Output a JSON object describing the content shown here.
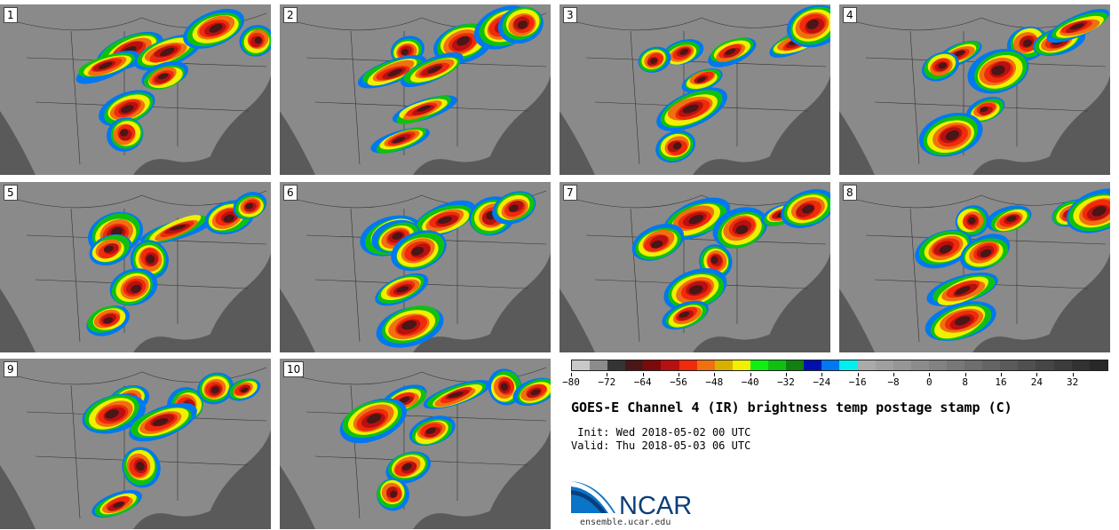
{
  "panels": [
    {
      "label": "1"
    },
    {
      "label": "2"
    },
    {
      "label": "3"
    },
    {
      "label": "4"
    },
    {
      "label": "5"
    },
    {
      "label": "6"
    },
    {
      "label": "7"
    },
    {
      "label": "8"
    },
    {
      "label": "9"
    },
    {
      "label": "10"
    }
  ],
  "colorbar": {
    "colors": [
      "#c8c8c8",
      "#8c8c8c",
      "#343434",
      "#4a1616",
      "#7c0a0a",
      "#b81010",
      "#f02a0a",
      "#f07010",
      "#d8b000",
      "#f0f000",
      "#10f010",
      "#10c010",
      "#108010",
      "#0010b0",
      "#0078f0",
      "#00f0f0",
      "#aaaaaa",
      "#a0a0a0",
      "#969696",
      "#8c8c8c",
      "#828282",
      "#787878",
      "#6e6e6e",
      "#646464",
      "#5a5a5a",
      "#505050",
      "#464646",
      "#3c3c3c",
      "#323232",
      "#282828"
    ],
    "tick_labels": [
      "−80",
      "−72",
      "−64",
      "−56",
      "−48",
      "−40",
      "−32",
      "−24",
      "−16",
      "−8",
      "0",
      "8",
      "16",
      "24",
      "32"
    ],
    "min": -80,
    "max": 40
  },
  "title": "GOES-E Channel 4 (IR) brightness temp postage stamp (C)",
  "init": " Init: Wed 2018-05-02 00 UTC",
  "valid": "Valid: Thu 2018-05-03 06 UTC",
  "logo_text": "NCAR",
  "site": "ensemble.ucar.edu"
}
